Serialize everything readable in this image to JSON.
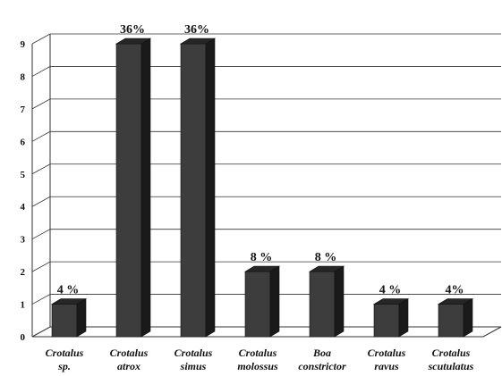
{
  "chart_data": {
    "type": "bar",
    "style": "3d-column",
    "categories": [
      [
        "Crotalus",
        "sp."
      ],
      [
        "Crotalus",
        "atrox"
      ],
      [
        "Crotalus",
        "simus"
      ],
      [
        "Crotalus",
        "molossus"
      ],
      [
        "Boa",
        "constrictor"
      ],
      [
        "Crotalus",
        "ravus"
      ],
      [
        "Crotalus",
        "scutulatus"
      ]
    ],
    "values": [
      1,
      9,
      9,
      2,
      2,
      1,
      1
    ],
    "data_labels": [
      "4 %",
      "36%",
      "36%",
      "8 %",
      "8 %",
      "4 %",
      "4%"
    ],
    "ylim": [
      0,
      9
    ],
    "yticks": [
      "0",
      "1",
      "2",
      "3",
      "4",
      "5",
      "6",
      "7",
      "8",
      "9"
    ],
    "title": "",
    "xlabel": "",
    "ylabel": "",
    "grid": true,
    "legend": "none",
    "colors": {
      "bar_front": "#3d3d3d",
      "bar_side": "#1a1a1a",
      "bar_top": "#262626",
      "grid": "#333333"
    }
  }
}
